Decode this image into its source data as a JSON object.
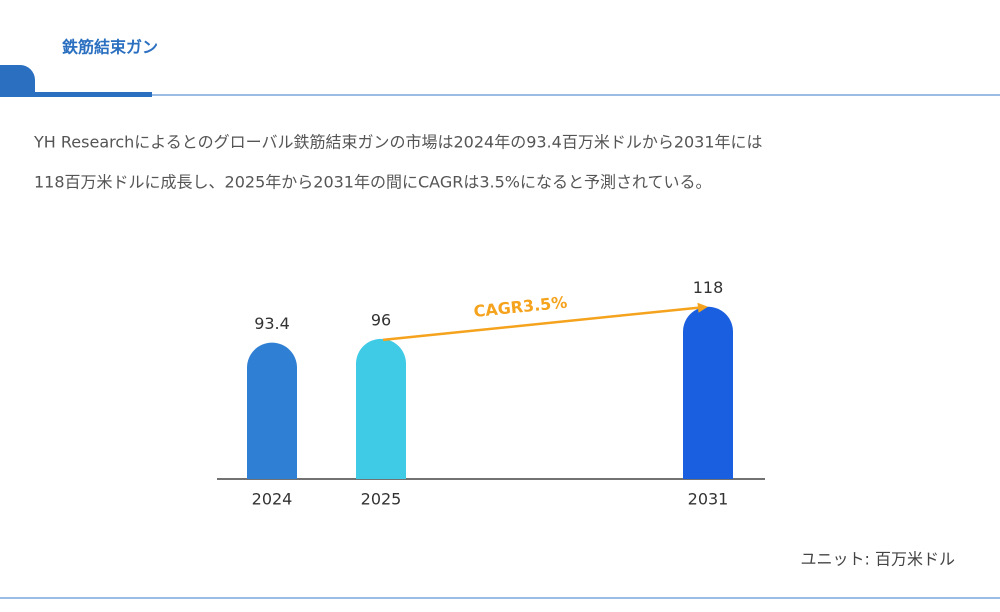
{
  "header": {
    "title": "鉄筋結束ガン"
  },
  "description": [
    "YH Researchによるとのグローバル鉄筋結束ガンの市場は2024年の93.4百万米ドルから2031年には",
    "118百万米ドルに成長し、2025年から2031年の間にCAGRは3.5%になると予測されている。"
  ],
  "chart_data": {
    "type": "bar",
    "categories": [
      "2024",
      "2025",
      "2031"
    ],
    "values": [
      93.4,
      96,
      118
    ],
    "colors": [
      "#2f80d4",
      "#3fcae6",
      "#1a5fe0"
    ],
    "annotation": "CAGR3.5%",
    "annotation_color": "#f5a21d"
  },
  "unit_note": "ユニット: 百万米ドル"
}
